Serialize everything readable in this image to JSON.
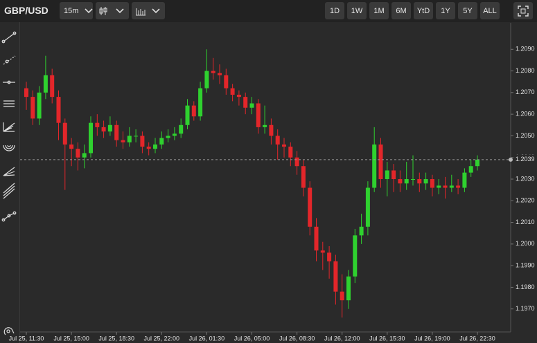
{
  "toolbar": {
    "symbol": "GBP/USD",
    "interval": "15m",
    "ranges": [
      "1D",
      "1W",
      "1M",
      "6M",
      "YtD",
      "1Y",
      "5Y",
      "ALL"
    ]
  },
  "chart_data": {
    "type": "candlestick",
    "categories": [
      "Jul 25, 11:30",
      null,
      null,
      null,
      null,
      null,
      null,
      "Jul 25, 15:00",
      null,
      null,
      null,
      null,
      null,
      null,
      "Jul 25, 18:30",
      null,
      null,
      null,
      null,
      null,
      null,
      "Jul 25, 22:00",
      null,
      null,
      null,
      null,
      null,
      null,
      "Jul 26, 01:30",
      null,
      null,
      null,
      null,
      null,
      null,
      "Jul 26, 05:00",
      null,
      null,
      null,
      null,
      null,
      null,
      "Jul 26, 08:30",
      null,
      null,
      null,
      null,
      null,
      null,
      "Jul 26, 12:00",
      null,
      null,
      null,
      null,
      null,
      null,
      "Jul 26, 15:30",
      null,
      null,
      null,
      null,
      null,
      null,
      "Jul 26, 19:00",
      null,
      null,
      null,
      null,
      null,
      null,
      "Jul 26, 22:30"
    ],
    "open": [
      1.2072,
      1.2068,
      1.2058,
      1.207,
      1.2078,
      1.2068,
      1.2056,
      1.2046,
      1.2044,
      1.204,
      1.2042,
      1.2056,
      1.2054,
      1.2052,
      1.2055,
      1.2048,
      1.2047,
      1.205,
      1.205,
      1.2045,
      1.2044,
      1.2046,
      1.2049,
      1.205,
      1.2051,
      1.2055,
      1.2064,
      1.2059,
      1.2072,
      1.208,
      1.2079,
      1.2078,
      1.2072,
      1.2069,
      1.2068,
      1.2063,
      1.2065,
      1.2054,
      1.2055,
      1.205,
      1.2046,
      1.2045,
      1.204,
      1.2036,
      1.2026,
      1.2008,
      1.1997,
      1.1996,
      1.1992,
      1.1978,
      1.1974,
      1.1985,
      1.2004,
      1.2008,
      1.2026,
      1.2046,
      1.203,
      1.2034,
      1.203,
      1.2028,
      1.203,
      1.203,
      1.2028,
      1.203,
      1.2026,
      1.2027,
      1.2026,
      1.2027,
      1.2026,
      1.2033,
      1.2036
    ],
    "close": [
      1.2068,
      1.2058,
      1.207,
      1.2078,
      1.2068,
      1.2056,
      1.2046,
      1.2044,
      1.204,
      1.2042,
      1.2056,
      1.2054,
      1.2052,
      1.2055,
      1.2048,
      1.2047,
      1.205,
      1.205,
      1.2045,
      1.2044,
      1.2046,
      1.2049,
      1.205,
      1.2051,
      1.2055,
      1.2064,
      1.2059,
      1.2072,
      1.208,
      1.2079,
      1.2078,
      1.2072,
      1.2069,
      1.2068,
      1.2063,
      1.2065,
      1.2054,
      1.2055,
      1.205,
      1.2046,
      1.2045,
      1.204,
      1.2036,
      1.2026,
      1.2008,
      1.1997,
      1.1996,
      1.1992,
      1.1978,
      1.1974,
      1.1985,
      1.2004,
      1.2008,
      1.2026,
      1.2046,
      1.203,
      1.2034,
      1.203,
      1.2028,
      1.203,
      1.203,
      1.2028,
      1.203,
      1.2026,
      1.2027,
      1.2026,
      1.2027,
      1.2026,
      1.2033,
      1.2036,
      1.2039
    ],
    "high": [
      1.2075,
      1.2071,
      1.2073,
      1.2087,
      1.2081,
      1.2071,
      1.2058,
      1.2049,
      1.2047,
      1.2046,
      1.2059,
      1.206,
      1.2057,
      1.2059,
      1.2057,
      1.2052,
      1.2054,
      1.2053,
      1.2052,
      1.2047,
      1.2049,
      1.2052,
      1.2053,
      1.2054,
      1.2058,
      1.2067,
      1.2066,
      1.2075,
      1.209,
      1.2086,
      1.2083,
      1.2081,
      1.2074,
      1.2071,
      1.207,
      1.2068,
      1.2067,
      1.2064,
      1.2058,
      1.2053,
      1.2049,
      1.2047,
      1.2043,
      1.2039,
      1.2029,
      1.2012,
      1.2001,
      1.1999,
      1.1995,
      1.1986,
      1.1988,
      1.2007,
      1.2014,
      1.2029,
      1.2054,
      1.2049,
      1.2038,
      1.2037,
      1.2034,
      1.2038,
      1.2041,
      1.2033,
      1.2033,
      1.2032,
      1.203,
      1.2031,
      1.2032,
      1.203,
      1.2035,
      1.2039,
      1.2041
    ],
    "low": [
      1.2062,
      1.2055,
      1.2055,
      1.2067,
      1.2065,
      1.2048,
      1.2025,
      1.2036,
      1.2034,
      1.2035,
      1.204,
      1.205,
      1.2049,
      1.205,
      1.2045,
      1.2044,
      1.2045,
      1.2047,
      1.2042,
      1.2041,
      1.2042,
      1.2044,
      1.2047,
      1.2048,
      1.2049,
      1.2053,
      1.2057,
      1.2057,
      1.207,
      1.2076,
      1.2074,
      1.2069,
      1.2066,
      1.2064,
      1.206,
      1.206,
      1.2051,
      1.2051,
      1.2046,
      1.2039,
      1.204,
      1.2036,
      1.2032,
      1.2022,
      1.2004,
      1.1992,
      1.1988,
      1.1984,
      1.1972,
      1.1966,
      1.197,
      1.1982,
      1.2,
      1.2004,
      1.2024,
      1.2026,
      1.2022,
      1.2024,
      1.2024,
      1.2025,
      1.2027,
      1.2024,
      1.2025,
      1.2022,
      1.2023,
      1.2021,
      1.2024,
      1.2023,
      1.2024,
      1.2031,
      1.2034
    ],
    "up_color": "#2fd12f",
    "down_color": "#e3262a",
    "last_value": 1.2039,
    "ylim": [
      1.196,
      1.21
    ],
    "yticks": [
      {
        "value": 1.197,
        "label": "1.1970"
      },
      {
        "value": 1.198,
        "label": "1.1980"
      },
      {
        "value": 1.199,
        "label": "1.1990"
      },
      {
        "value": 1.2,
        "label": "1.2000"
      },
      {
        "value": 1.201,
        "label": "1.2010"
      },
      {
        "value": 1.202,
        "label": "1.2020"
      },
      {
        "value": 1.203,
        "label": "1.2030"
      },
      {
        "value": 1.204,
        "label": "1.2040"
      },
      {
        "value": 1.205,
        "label": "1.2050"
      },
      {
        "value": 1.206,
        "label": "1.2060"
      },
      {
        "value": 1.207,
        "label": "1.2070"
      },
      {
        "value": 1.208,
        "label": "1.2080"
      },
      {
        "value": 1.209,
        "label": "1.2090"
      }
    ],
    "grid": false
  }
}
